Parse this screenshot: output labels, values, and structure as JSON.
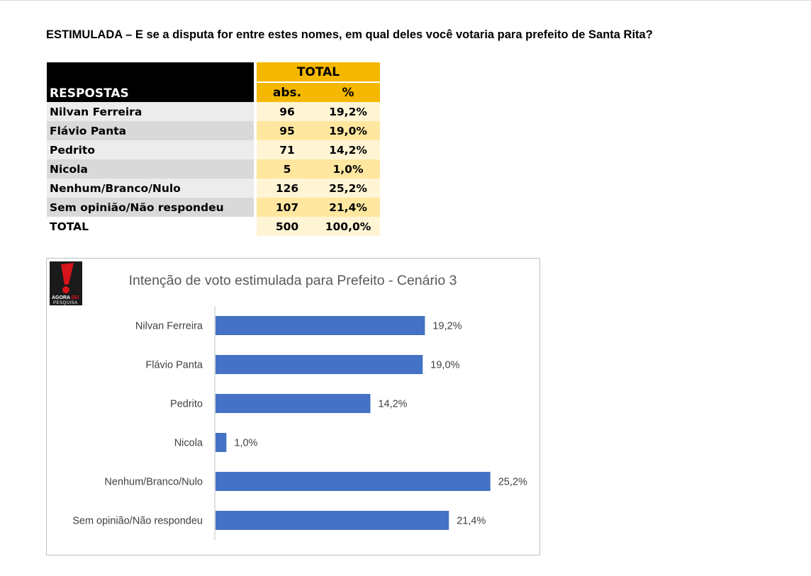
{
  "heading": "ESTIMULADA – E se a disputa for entre estes nomes, em qual deles você votaria para prefeito de Santa Rita?",
  "table": {
    "group_header": "TOTAL",
    "col_label_header": "RESPOSTAS",
    "col_abs_header": "abs.",
    "col_pct_header": "%",
    "rows": [
      {
        "label": "Nilvan Ferreira",
        "abs": "96",
        "pct": "19,2%"
      },
      {
        "label": "Flávio Panta",
        "abs": "95",
        "pct": "19,0%"
      },
      {
        "label": "Pedrito",
        "abs": "71",
        "pct": "14,2%"
      },
      {
        "label": "Nicola",
        "abs": "5",
        "pct": "1,0%"
      },
      {
        "label": "Nenhum/Branco/Nulo",
        "abs": "126",
        "pct": "25,2%"
      },
      {
        "label": "Sem opinião/Não respondeu",
        "abs": "107",
        "pct": "21,4%"
      }
    ],
    "total_row": {
      "label": "TOTAL",
      "abs": "500",
      "pct": "100,0%"
    }
  },
  "logo": {
    "line1_a": "AGORA",
    "line1_b": "SEI",
    "line2": "PESQUISA",
    "icon": "exclamation-icon"
  },
  "chart_data": {
    "type": "bar",
    "orientation": "horizontal",
    "title": "Intenção de voto estimulada para Prefeito - Cenário 3",
    "categories": [
      "Nilvan Ferreira",
      "Flávio Panta",
      "Pedrito",
      "Nicola",
      "Nenhum/Branco/Nulo",
      "Sem opinião/Não respondeu"
    ],
    "values": [
      19.2,
      19.0,
      14.2,
      1.0,
      25.2,
      21.4
    ],
    "data_labels": [
      "19,2%",
      "19,0%",
      "14,2%",
      "1,0%",
      "25,2%",
      "21,4%"
    ],
    "xlim": [
      0,
      26
    ],
    "bar_color": "#4472c4",
    "grid": false,
    "legend": "none"
  }
}
